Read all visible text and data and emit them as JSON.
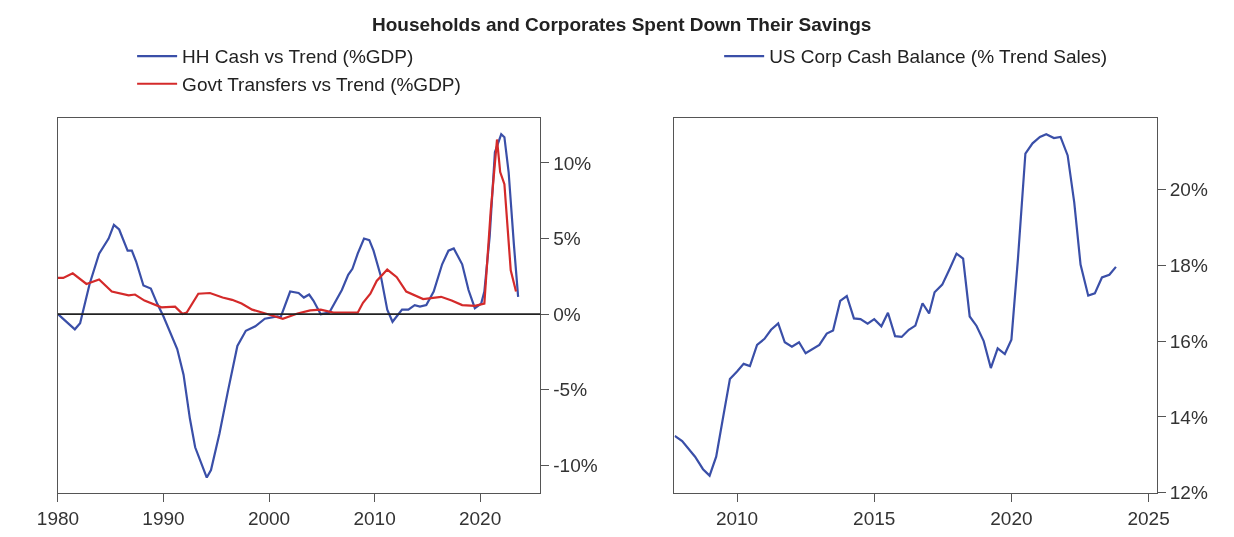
{
  "chart_data": [
    {
      "type": "line",
      "title": "Households and Corporates Spent Down Their Savings",
      "xlim": [
        1980,
        2025.7
      ],
      "xticks": [
        1980,
        1990,
        2000,
        2010,
        2020
      ],
      "ylim": [
        -11.8,
        13
      ],
      "yticks": [
        {
          "value": -10,
          "label": "-10%"
        },
        {
          "value": -5,
          "label": "-5%"
        },
        {
          "value": 0,
          "label": "0%"
        },
        {
          "value": 5,
          "label": "5%"
        },
        {
          "value": 10,
          "label": "10%"
        }
      ],
      "legend": "top",
      "marker": "none",
      "line_style": "solid",
      "ref_lines": [
        {
          "axis": "y",
          "value": 0,
          "color": "#222222"
        }
      ],
      "series": [
        {
          "name": "HH Cash vs Trend (%GDP)",
          "color": "#3a4fa8",
          "x": [
            1980,
            1981.6,
            1982.1,
            1983.0,
            1983.9,
            1984.8,
            1985.3,
            1985.8,
            1986.6,
            1987.0,
            1987.4,
            1988.1,
            1988.8,
            1989.4,
            1990.0,
            1991.3,
            1991.9,
            1992.5,
            1993.0,
            1994.1,
            1994.5,
            1995.3,
            1996.1,
            1997.0,
            1997.8,
            1998.7,
            1999.6,
            2000.8,
            2001.1,
            2002.0,
            2002.8,
            2003.3,
            2003.8,
            2004.2,
            2004.9,
            2005.7,
            2006.9,
            2007.5,
            2007.9,
            2008.4,
            2009.0,
            2009.5,
            2009.9,
            2010.6,
            2011.2,
            2011.7,
            2012.6,
            2013.2,
            2013.8,
            2014.3,
            2014.9,
            2015.6,
            2016.4,
            2017.0,
            2017.5,
            2018.3,
            2018.9,
            2019.5,
            2020.1,
            2020.4,
            2020.9,
            2021.4,
            2022.0,
            2022.3,
            2022.7,
            2023.2,
            2023.6
          ],
          "values": [
            0,
            -1.0,
            -0.6,
            2.0,
            4.0,
            5.0,
            5.9,
            5.6,
            4.2,
            4.2,
            3.5,
            1.9,
            1.7,
            0.7,
            -0.15,
            -2.3,
            -4.0,
            -6.9,
            -8.8,
            -10.8,
            -10.3,
            -7.9,
            -5.1,
            -2.1,
            -1.1,
            -0.8,
            -0.3,
            -0.15,
            -0.2,
            1.5,
            1.4,
            1.1,
            1.3,
            0.9,
            0,
            0.1,
            1.6,
            2.6,
            3.0,
            4.0,
            5.0,
            4.9,
            4.2,
            2.5,
            0.3,
            -0.5,
            0.3,
            0.3,
            0.6,
            0.5,
            0.6,
            1.5,
            3.3,
            4.2,
            4.35,
            3.3,
            1.6,
            0.4,
            0.7,
            1.5,
            5.1,
            10.7,
            11.9,
            11.7,
            9.4,
            4.6,
            1.15
          ]
        },
        {
          "name": "Govt Transfers vs Trend (%GDP)",
          "color": "#d42a2a",
          "x": [
            1980,
            1980.5,
            1981.4,
            1982.7,
            1983.9,
            1985.1,
            1986.7,
            1987.3,
            1988.2,
            1989.8,
            1991.1,
            1991.8,
            1992.2,
            1993.3,
            1994.4,
            1995.6,
            1996.5,
            1997.4,
            1998.4,
            1999.9,
            2001.3,
            2002.7,
            2003.9,
            2004.9,
            2006.1,
            2007.0,
            2008.4,
            2008.9,
            2009.6,
            2010.2,
            2011.2,
            2012.1,
            2013.0,
            2014.6,
            2016.3,
            2017.3,
            2018.3,
            2019.5,
            2020.4,
            2021.0,
            2021.6,
            2021.9,
            2022.3,
            2022.9,
            2023.4
          ],
          "values": [
            2.4,
            2.4,
            2.7,
            2.0,
            2.3,
            1.5,
            1.25,
            1.3,
            0.9,
            0.45,
            0.5,
            0.02,
            0.1,
            1.35,
            1.4,
            1.1,
            0.95,
            0.7,
            0.3,
            0,
            -0.3,
            0.05,
            0.25,
            0.3,
            0.1,
            0.1,
            0.1,
            0.75,
            1.35,
            2.2,
            2.95,
            2.45,
            1.5,
            1.0,
            1.15,
            0.9,
            0.6,
            0.55,
            0.7,
            6.8,
            11.55,
            9.4,
            8.6,
            2.9,
            1.5
          ]
        }
      ]
    },
    {
      "type": "line",
      "xlim": [
        2007.72,
        2025.3
      ],
      "xticks": [
        2010,
        2015,
        2020,
        2025
      ],
      "ylim": [
        12,
        21.9
      ],
      "yticks": [
        {
          "value": 12,
          "label": "12%"
        },
        {
          "value": 14,
          "label": "14%"
        },
        {
          "value": 16,
          "label": "16%"
        },
        {
          "value": 18,
          "label": "18%"
        },
        {
          "value": 20,
          "label": "20%"
        }
      ],
      "legend": "top",
      "marker": "none",
      "line_style": "solid",
      "series": [
        {
          "name": "US Corp Cash Balance (% Trend Sales)",
          "color": "#3a4fa8",
          "x": [
            2007.73,
            2008.0,
            2008.47,
            2008.76,
            2009.0,
            2009.24,
            2009.47,
            2009.74,
            2010.0,
            2010.24,
            2010.47,
            2010.73,
            2011.0,
            2011.24,
            2011.5,
            2011.74,
            2012.0,
            2012.26,
            2012.5,
            2013.0,
            2013.27,
            2013.5,
            2013.76,
            2014.0,
            2014.26,
            2014.5,
            2014.76,
            2015.0,
            2015.26,
            2015.5,
            2015.76,
            2016.0,
            2016.26,
            2016.5,
            2016.76,
            2017.0,
            2017.2,
            2017.48,
            2017.74,
            2018.0,
            2018.24,
            2018.48,
            2018.73,
            2018.99,
            2019.25,
            2019.5,
            2019.76,
            2020.0,
            2020.24,
            2020.51,
            2020.77,
            2021.04,
            2021.27,
            2021.55,
            2021.79,
            2022.05,
            2022.29,
            2022.52,
            2022.8,
            2023.04,
            2023.3,
            2023.57,
            2023.81
          ],
          "values": [
            13.5,
            13.36,
            12.95,
            12.62,
            12.45,
            12.95,
            13.9,
            15.0,
            15.2,
            15.4,
            15.34,
            15.9,
            16.06,
            16.3,
            16.47,
            15.97,
            15.85,
            15.97,
            15.68,
            15.9,
            16.2,
            16.28,
            17.06,
            17.19,
            16.6,
            16.58,
            16.46,
            16.58,
            16.39,
            16.75,
            16.13,
            16.11,
            16.3,
            16.41,
            17.0,
            16.73,
            17.29,
            17.49,
            17.89,
            18.31,
            18.18,
            16.65,
            16.4,
            16.0,
            15.29,
            15.81,
            15.66,
            16.04,
            18.19,
            20.95,
            21.22,
            21.39,
            21.46,
            21.36,
            21.39,
            20.9,
            19.66,
            18.02,
            17.2,
            17.26,
            17.68,
            17.75,
            17.96
          ]
        }
      ]
    }
  ]
}
